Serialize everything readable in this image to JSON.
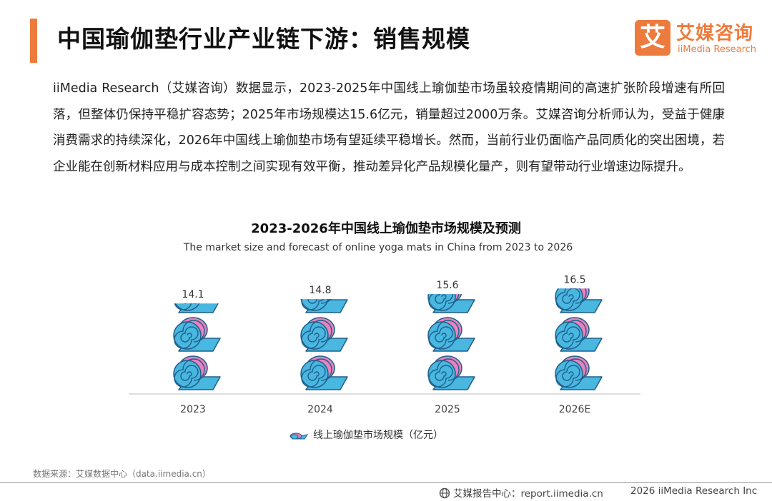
{
  "header": {
    "title": "中国瑜伽垫行业产业链下游：销售规模",
    "logo_mark": "艾",
    "logo_cn": "艾媒咨询",
    "logo_en": "iiMedia Research"
  },
  "intro": "iiMedia Research（艾媒咨询）数据显示，2023-2025年中国线上瑜伽垫市场虽较疫情期间的高速扩张阶段增速有所回落，但整体仍保持平稳扩容态势；2025年市场规模达15.6亿元，销量超过2000万条。艾媒咨询分析师认为，受益于健康消费需求的持续深化，2026年中国线上瑜伽垫市场有望延续平稳增长。然而，当前行业仍面临产品同质化的突出困境，若企业能在创新材料应用与成本控制之间实现有效平衡，推动差异化产品规模化量产，则有望带动行业增速边际提升。",
  "chart_data": {
    "type": "bar",
    "style": "pictograph",
    "title": "2023-2026年中国线上瑜伽垫市场规模及预测",
    "subtitle": "The market size and forecast of online yoga mats in China from 2023 to 2026",
    "categories": [
      "2023",
      "2024",
      "2025",
      "2026E"
    ],
    "values": [
      14.1,
      14.8,
      15.6,
      16.5
    ],
    "labels": [
      "14.1",
      "14.8",
      "15.6",
      "16.5"
    ],
    "series_name": "线上瑜伽垫市场规模（亿元）",
    "units_per_icon": 6.2,
    "colors": {
      "mat_pink": "#e982bd",
      "mat_blue": "#49b7e0",
      "outline": "#1f5f8a"
    }
  },
  "source": "数据来源：艾媒数据中心（data.iimedia.cn）",
  "footer": {
    "left": "艾媒报告中心：report.iimedia.cn",
    "right": "2026  iiMedia Research  Inc"
  },
  "accent": "#ee7b3e"
}
